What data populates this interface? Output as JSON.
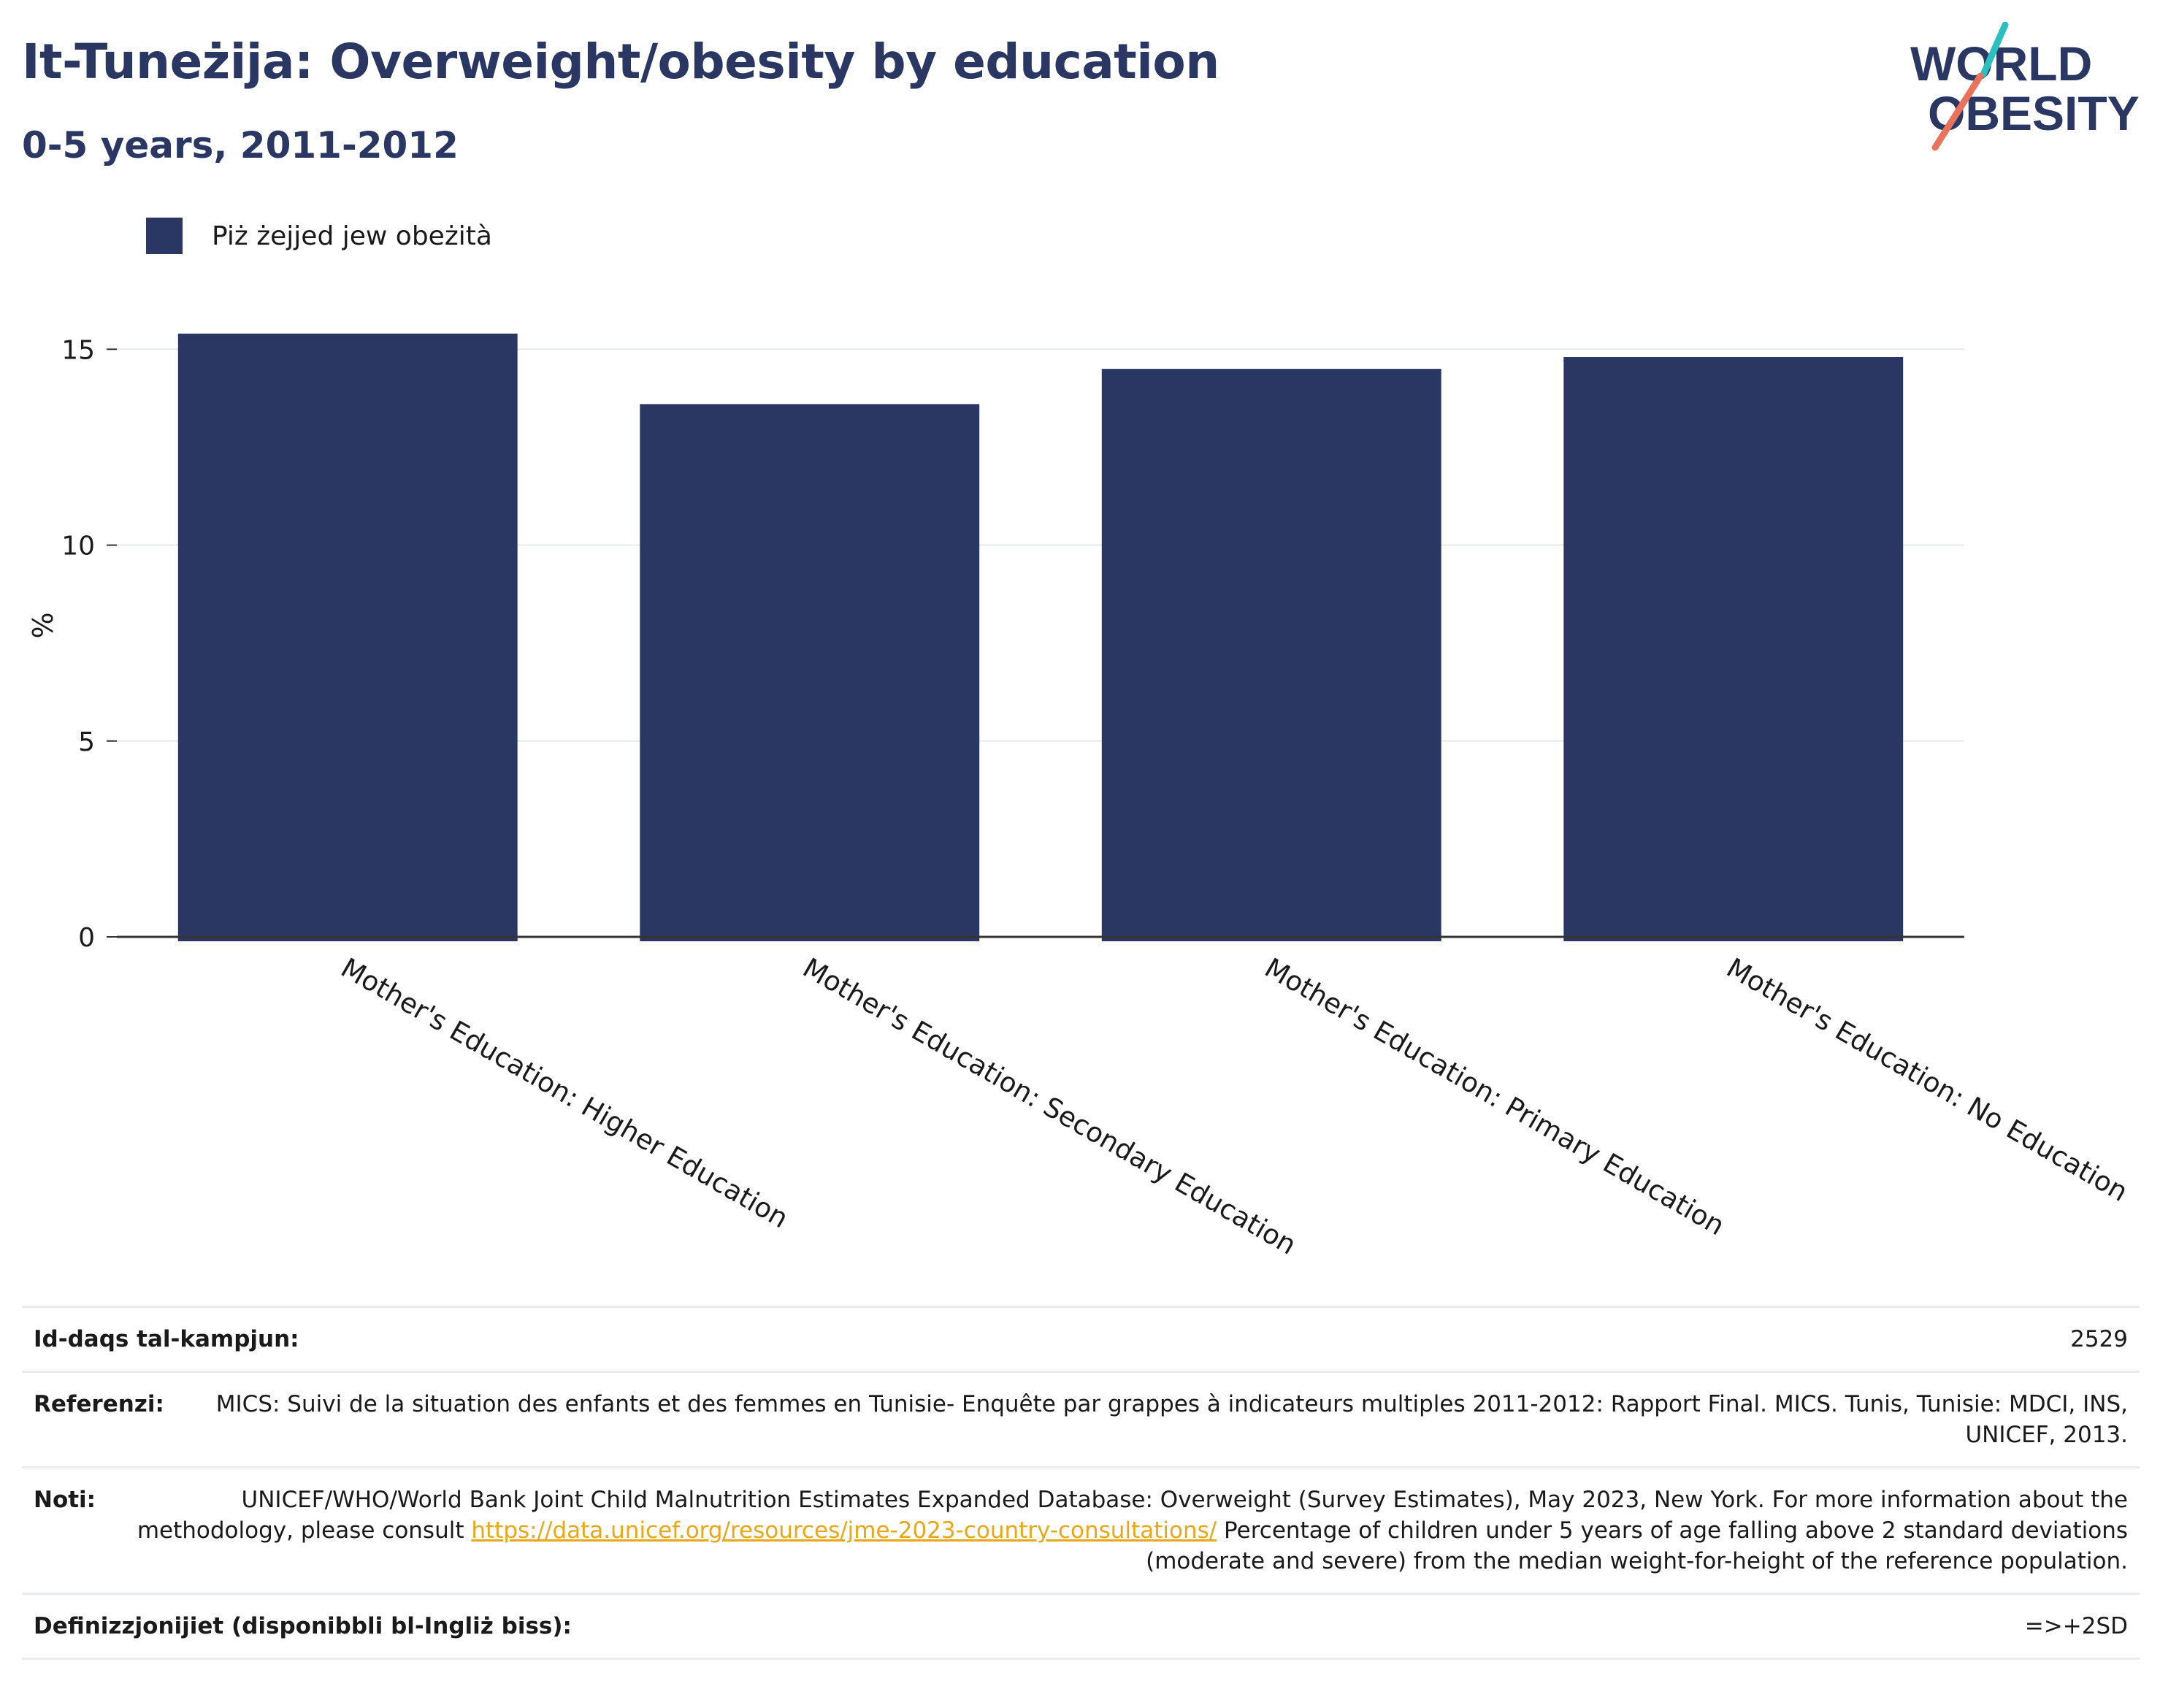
{
  "header": {
    "title": "It-Tuneżija: Overweight/obesity by education",
    "subtitle": "0-5 years, 2011-2012"
  },
  "logo": {
    "line1": "WORLD",
    "line2": "OBESITY",
    "colors": {
      "navy": "#2a3762",
      "teal": "#2bbfbf",
      "coral": "#e8735a"
    }
  },
  "colors": {
    "bar": "#2a3762",
    "grid": "#e6e9ef",
    "axis": "#333333",
    "link": "#e8a817"
  },
  "chart_data": {
    "type": "bar",
    "categories": [
      "Mother's Education: Higher Education",
      "Mother's Education: Secondary Education",
      "Mother's Education: Primary Education",
      "Mother's Education: No Education"
    ],
    "series": [
      {
        "name": "Piż żejjed jew obeżità",
        "values": [
          15.4,
          13.6,
          14.5,
          14.8
        ]
      }
    ],
    "ylabel": "%",
    "ylim": [
      0,
      15.9
    ],
    "yticks": [
      0,
      5,
      10,
      15
    ],
    "grid": true,
    "legend": "top-left"
  },
  "info": {
    "rows": [
      {
        "label": "Id-daqs tal-kampjun:",
        "value": "2529"
      },
      {
        "label": "Referenzi:",
        "value": "MICS: Suivi de la situation des enfants et des femmes en Tunisie- Enquête par grappes à indicateurs multiples 2011-2012: Rapport Final. MICS. Tunis, Tunisie: MDCI, INS, UNICEF, 2013."
      },
      {
        "label": "Noti:",
        "value_before": "UNICEF/WHO/World Bank Joint Child Malnutrition Estimates Expanded Database: Overweight (Survey Estimates), May 2023, New York. For more information about the methodology, please consult ",
        "link": "https://data.unicef.org/resources/jme-2023-country-consultations/",
        "value_after": " Percentage of children under 5 years of age falling above 2 standard deviations (moderate and severe) from the median weight-for-height of the reference population."
      },
      {
        "label": "Definizzjonijiet (disponibbli bl-Ingliż biss):",
        "value": "=>+2SD"
      }
    ]
  }
}
